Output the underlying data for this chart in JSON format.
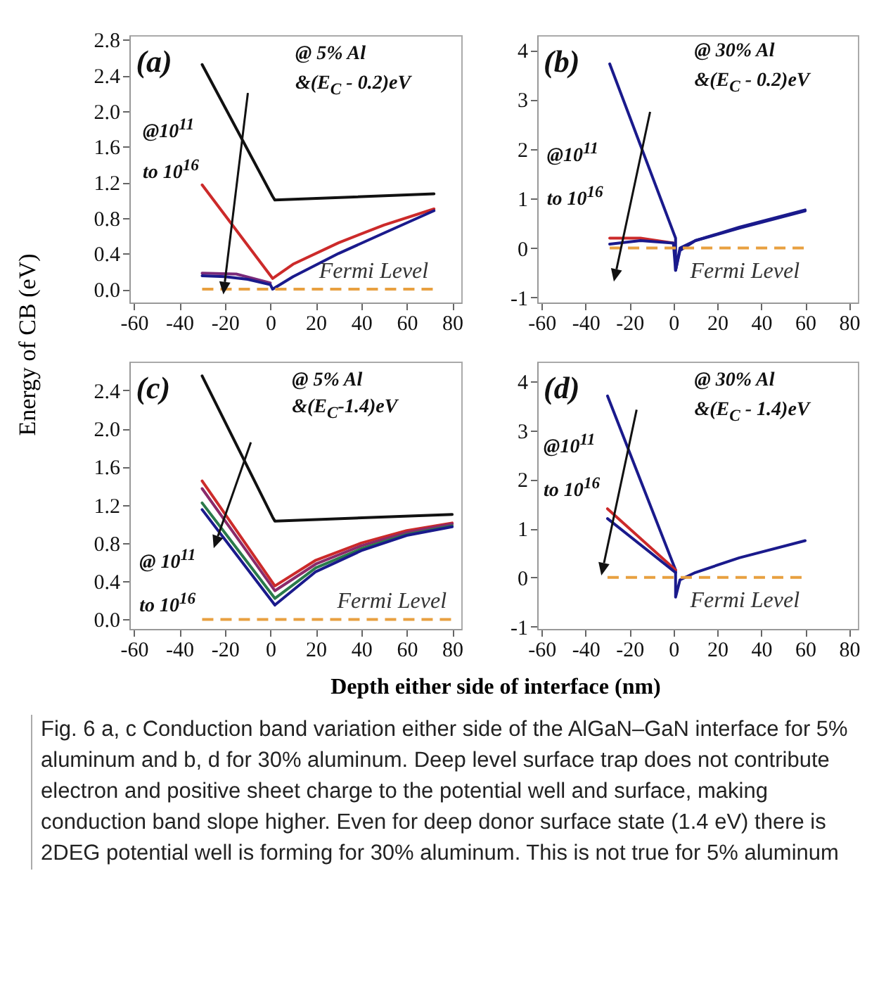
{
  "chart_data": [
    {
      "type": "line",
      "ylabel": "Energy of CB (eV)",
      "xlim": [
        -62,
        84
      ],
      "xticks": [
        -60,
        -40,
        -20,
        0,
        20,
        40,
        60,
        80
      ],
      "ylim": [
        -0.15,
        2.85
      ],
      "yticks": [
        {
          "value": 0,
          "label": "0.0"
        },
        {
          "value": 0.4,
          "label": "0.4"
        },
        {
          "value": 0.8,
          "label": "0.8"
        },
        {
          "value": 1.2,
          "label": "1.2"
        },
        {
          "value": 1.6,
          "label": "1.6"
        },
        {
          "value": 2.0,
          "label": "2.0"
        },
        {
          "value": 2.4,
          "label": "2.4"
        },
        {
          "value": 2.8,
          "label": "2.8"
        }
      ],
      "grid": false,
      "annotations": [
        "(a)",
        "@ 5% Al",
        "&(E$_{C}$ - 0.2)eV",
        "@10$^{11}$",
        "to 10$^{16}$"
      ],
      "ref_lines": [
        {
          "axis": "y",
          "value": 0,
          "label": "Fermi Level",
          "color": "#e8a040",
          "line_style": "dashed"
        }
      ],
      "series": [
        {
          "color": "#111111",
          "x": [
            -30,
            1,
            2,
            72
          ],
          "values": [
            2.52,
            1.04,
            1.0,
            1.07
          ]
        },
        {
          "color": "#cc2a2a",
          "x": [
            -30,
            1,
            10,
            30,
            50,
            72
          ],
          "values": [
            1.17,
            0.12,
            0.28,
            0.52,
            0.72,
            0.9
          ]
        },
        {
          "color": "#7a2a7a",
          "x": [
            -30,
            -15,
            0
          ],
          "values": [
            0.18,
            0.17,
            0.07
          ]
        },
        {
          "color": "#1a1a8c",
          "x": [
            -30,
            -20,
            -10,
            0,
            1,
            10,
            30,
            50,
            72
          ],
          "values": [
            0.15,
            0.14,
            0.11,
            0.05,
            0.0,
            0.14,
            0.4,
            0.63,
            0.88
          ]
        }
      ]
    },
    {
      "type": "line",
      "xlim": [
        -62,
        84
      ],
      "xticks": [
        -60,
        -40,
        -20,
        0,
        20,
        40,
        60,
        80
      ],
      "ylim": [
        -1.1,
        4.3
      ],
      "yticks": [
        -1,
        0,
        1,
        2,
        3,
        4
      ],
      "grid": false,
      "annotations": [
        "(b)",
        "@ 30% Al",
        "&(E$_{C}$ - 0.2)eV",
        "@10$^{11}$",
        "to 10$^{16}$"
      ],
      "ref_lines": [
        {
          "axis": "y",
          "value": 0,
          "label": "Fermi Level",
          "color": "#e8a040",
          "line_style": "dashed"
        }
      ],
      "series": [
        {
          "color": "#1a1a8c",
          "x": [
            -29,
            1,
            1,
            3,
            10,
            30,
            60
          ],
          "values": [
            3.72,
            0.2,
            -0.45,
            0.0,
            0.15,
            0.4,
            0.75
          ]
        },
        {
          "color": "#cc2a2a",
          "x": [
            -29,
            -15,
            0
          ],
          "values": [
            0.2,
            0.2,
            0.1
          ]
        },
        {
          "color": "#1a1a8c",
          "x": [
            -29,
            -15,
            0,
            1,
            3,
            10,
            30,
            60
          ],
          "values": [
            0.08,
            0.15,
            0.1,
            -0.45,
            -0.05,
            0.15,
            0.42,
            0.77
          ]
        }
      ]
    },
    {
      "type": "line",
      "xlabel": "Depth either side of interface (nm)",
      "xlim": [
        -62,
        84
      ],
      "xticks": [
        -60,
        -40,
        -20,
        0,
        20,
        40,
        60,
        80
      ],
      "ylim": [
        -0.1,
        2.7
      ],
      "yticks": [
        {
          "value": 0,
          "label": "0.0"
        },
        {
          "value": 0.4,
          "label": "0.4"
        },
        {
          "value": 0.8,
          "label": "0.8"
        },
        {
          "value": 1.2,
          "label": "1.2"
        },
        {
          "value": 1.6,
          "label": "1.6"
        },
        {
          "value": 2.0,
          "label": "2.0"
        },
        {
          "value": 2.4,
          "label": "2.4"
        }
      ],
      "grid": false,
      "annotations": [
        "(c)",
        "@ 5% Al",
        "&(E$_{C}$-1.4)eV",
        "@ 10$^{11}$",
        "to 10$^{16}$"
      ],
      "ref_lines": [
        {
          "axis": "y",
          "value": 0,
          "label": "Fermi Level",
          "color": "#e8a040",
          "line_style": "dashed"
        }
      ],
      "series": [
        {
          "color": "#111111",
          "x": [
            -30,
            1,
            2,
            80
          ],
          "values": [
            2.55,
            1.07,
            1.03,
            1.1
          ]
        },
        {
          "color": "#cc2a2a",
          "x": [
            -30,
            2,
            20,
            40,
            60,
            80
          ],
          "values": [
            1.45,
            0.35,
            0.62,
            0.8,
            0.93,
            1.01
          ]
        },
        {
          "color": "#8a2a6a",
          "x": [
            -30,
            2,
            20,
            40,
            60,
            80
          ],
          "values": [
            1.37,
            0.3,
            0.58,
            0.77,
            0.91,
            1.0
          ]
        },
        {
          "color": "#2a7a4a",
          "x": [
            -30,
            2,
            20,
            40,
            60,
            80
          ],
          "values": [
            1.22,
            0.22,
            0.54,
            0.74,
            0.89,
            0.98
          ]
        },
        {
          "color": "#1a1a8c",
          "x": [
            -30,
            2,
            20,
            40,
            60,
            80
          ],
          "values": [
            1.15,
            0.15,
            0.5,
            0.72,
            0.88,
            0.97
          ]
        }
      ]
    },
    {
      "type": "line",
      "xlim": [
        -62,
        84
      ],
      "xticks": [
        -60,
        -40,
        -20,
        0,
        20,
        40,
        60,
        80
      ],
      "ylim": [
        -1.05,
        4.4
      ],
      "yticks": [
        -1,
        0,
        1,
        2,
        3,
        4
      ],
      "grid": false,
      "annotations": [
        "(d)",
        "@ 30% Al",
        "&(E$_{C}$ - 1.4)eV",
        "@10$^{11}$",
        "to 10$^{16}$"
      ],
      "ref_lines": [
        {
          "axis": "y",
          "value": 0,
          "label": "Fermi Level",
          "color": "#e8a040",
          "line_style": "dashed"
        }
      ],
      "series": [
        {
          "color": "#1a1a8c",
          "x": [
            -30,
            1,
            1,
            3,
            10,
            30,
            60
          ],
          "values": [
            3.7,
            0.15,
            -0.4,
            -0.05,
            0.1,
            0.4,
            0.75
          ]
        },
        {
          "color": "#cc2a2a",
          "x": [
            -30,
            1
          ],
          "values": [
            1.4,
            0.15
          ]
        },
        {
          "color": "#1a1a8c",
          "x": [
            -30,
            1
          ],
          "values": [
            1.2,
            0.1
          ]
        }
      ]
    },
    {
      "type": "other",
      "annotations": [
        "Fig. 6 a, c Conduction band variation either side of the AlGaN–GaN interface for 5% aluminum and b, d for 30% aluminum. Deep level surface trap does not contribute electron and positive sheet charge to the potential well and surface, making conduction band slope higher. Even for deep donor surface state (1.4 eV) there is 2DEG potential well is forming for 30% aluminum. This is not true for 5% aluminum"
      ]
    }
  ]
}
